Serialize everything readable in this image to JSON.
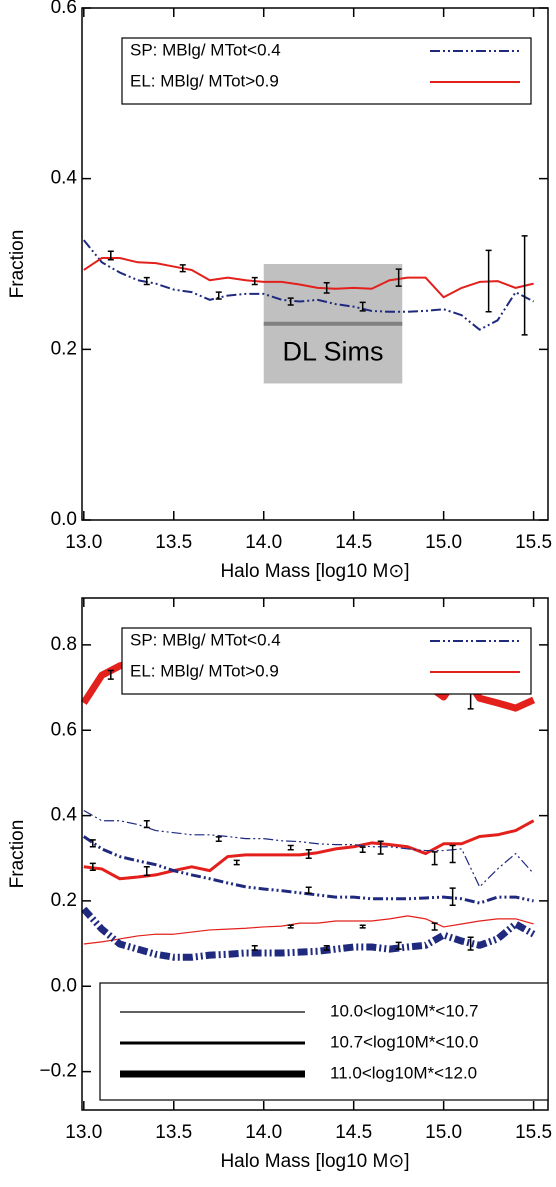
{
  "chart_data": [
    {
      "type": "line",
      "xlabel": "Halo Mass [log10 M⊙]",
      "ylabel": "Fraction",
      "xlim": [
        12.99,
        15.58
      ],
      "ylim": [
        0,
        0.6
      ],
      "xticks": [
        {
          "value": 13,
          "label": "13.0"
        },
        13.5,
        {
          "value": 14,
          "label": "14.0"
        },
        14.5,
        {
          "value": 15,
          "label": "15.0"
        },
        15.5
      ],
      "yticks": [
        {
          "value": 0,
          "label": "0.0"
        },
        0.2,
        0.4,
        0.6
      ],
      "legend": [
        {
          "name": "SP: MBlg/ MTot<0.4",
          "color": "#1f2a7f",
          "dash": "10,3,2,3,2,3"
        },
        {
          "name": "EL: MBlg/ MTot>0.9",
          "color": "#e3201b",
          "dash": "none"
        }
      ],
      "x": [
        13.0,
        13.1,
        13.2,
        13.3,
        13.4,
        13.5,
        13.6,
        13.7,
        13.8,
        13.9,
        14.0,
        14.1,
        14.2,
        14.3,
        14.4,
        14.5,
        14.6,
        14.7,
        14.8,
        14.9,
        15.0,
        15.1,
        15.2,
        15.3,
        15.4,
        15.5
      ],
      "series": [
        {
          "legend": 0,
          "width": 2,
          "values": [
            0.328,
            0.302,
            0.29,
            0.281,
            0.277,
            0.27,
            0.267,
            0.258,
            0.263,
            0.265,
            0.265,
            0.258,
            0.256,
            0.258,
            0.253,
            0.25,
            0.245,
            0.244,
            0.244,
            0.245,
            0.247,
            0.24,
            0.223,
            0.234,
            0.267,
            0.256
          ]
        },
        {
          "legend": 1,
          "width": 2,
          "values": [
            0.293,
            0.307,
            0.307,
            0.302,
            0.301,
            0.297,
            0.293,
            0.281,
            0.284,
            0.281,
            0.279,
            0.279,
            0.276,
            0.272,
            0.271,
            0.272,
            0.271,
            0.281,
            0.284,
            0.284,
            0.261,
            0.272,
            0.279,
            0.28,
            0.272,
            0.277
          ]
        }
      ],
      "error_bars": {
        "x": [
          13.15,
          13.35,
          13.55,
          13.75,
          13.95,
          14.15,
          14.35,
          14.55,
          14.75,
          15.25,
          15.45
        ],
        "values": [
          0.31,
          0.28,
          0.295,
          0.263,
          0.28,
          0.256,
          0.272,
          0.25,
          0.284,
          0.28,
          0.275
        ],
        "errors": [
          0.005,
          0.004,
          0.004,
          0.004,
          0.004,
          0.004,
          0.006,
          0.005,
          0.01,
          0.036,
          0.058
        ]
      },
      "band": {
        "label": "DL Sims",
        "xlim": [
          14.0,
          14.77
        ],
        "ylim": [
          0.16,
          0.3
        ],
        "line": 0.23
      }
    },
    {
      "type": "line",
      "xlabel": "Halo Mass [log10 M⊙]",
      "ylabel": "Fraction",
      "xlim": [
        12.99,
        15.58
      ],
      "ylim": [
        -0.29,
        0.91
      ],
      "xticks": [
        {
          "value": 13,
          "label": "13.0"
        },
        13.5,
        {
          "value": 14,
          "label": "14.0"
        },
        14.5,
        {
          "value": 15,
          "label": "15.0"
        },
        15.5
      ],
      "yticks": [
        {
          "value": -0.2,
          "label": "−0.2"
        },
        {
          "value": 0,
          "label": "0.0"
        },
        0.2,
        0.4,
        0.6,
        0.8
      ],
      "legend": [
        {
          "name": "SP: MBlg/ MTot<0.4",
          "color": "#1f2a7f",
          "dash": "10,3,2,3,2,3"
        },
        {
          "name": "EL: MBlg/ MTot>0.9",
          "color": "#e3201b",
          "dash": "none"
        }
      ],
      "width_legend": {
        "labels": [
          "10.0<log10M*<10.7",
          "10.7<log10M*<10.0",
          "11.0<log10M*<12.0"
        ],
        "widths": [
          1.2,
          3,
          7
        ]
      },
      "x": [
        13.0,
        13.1,
        13.2,
        13.3,
        13.4,
        13.5,
        13.6,
        13.7,
        13.8,
        13.9,
        14.0,
        14.1,
        14.2,
        14.3,
        14.4,
        14.5,
        14.6,
        14.7,
        14.8,
        14.9,
        15.0,
        15.1,
        15.2,
        15.3,
        15.4,
        15.5
      ],
      "series": [
        {
          "legend": 1,
          "width_key": 2,
          "values": [
            0.664,
            0.729,
            0.751,
            0.76,
            0.769,
            0.774,
            0.765,
            0.755,
            0.76,
            0.741,
            0.736,
            0.732,
            0.732,
            0.727,
            0.718,
            0.713,
            0.708,
            0.732,
            0.708,
            0.708,
            0.678,
            0.739,
            0.675,
            0.664,
            0.652,
            0.671
          ]
        },
        {
          "legend": 1,
          "width_key": 1,
          "values": [
            0.28,
            0.275,
            0.252,
            0.256,
            0.261,
            0.271,
            0.28,
            0.271,
            0.304,
            0.308,
            0.308,
            0.308,
            0.308,
            0.313,
            0.322,
            0.327,
            0.336,
            0.332,
            0.327,
            0.311,
            0.334,
            0.334,
            0.351,
            0.355,
            0.365,
            0.388
          ]
        },
        {
          "legend": 1,
          "width_key": 0,
          "values": [
            0.099,
            0.104,
            0.111,
            0.118,
            0.122,
            0.122,
            0.127,
            0.132,
            0.134,
            0.136,
            0.139,
            0.141,
            0.148,
            0.148,
            0.153,
            0.153,
            0.153,
            0.158,
            0.165,
            0.158,
            0.139,
            0.146,
            0.153,
            0.158,
            0.158,
            0.146
          ]
        },
        {
          "legend": 0,
          "width_key": 0,
          "values": [
            0.412,
            0.388,
            0.388,
            0.379,
            0.365,
            0.36,
            0.355,
            0.355,
            0.351,
            0.346,
            0.346,
            0.341,
            0.339,
            0.334,
            0.332,
            0.332,
            0.327,
            0.327,
            0.322,
            0.318,
            0.318,
            0.322,
            0.233,
            0.275,
            0.311,
            0.264
          ]
        },
        {
          "legend": 0,
          "width_key": 1,
          "values": [
            0.351,
            0.322,
            0.304,
            0.294,
            0.285,
            0.271,
            0.261,
            0.252,
            0.242,
            0.233,
            0.228,
            0.224,
            0.219,
            0.214,
            0.209,
            0.209,
            0.205,
            0.205,
            0.205,
            0.207,
            0.209,
            0.205,
            0.195,
            0.209,
            0.209,
            0.2
          ]
        },
        {
          "legend": 0,
          "width_key": 2,
          "values": [
            0.181,
            0.134,
            0.099,
            0.087,
            0.075,
            0.068,
            0.068,
            0.073,
            0.075,
            0.078,
            0.078,
            0.078,
            0.08,
            0.082,
            0.087,
            0.092,
            0.092,
            0.087,
            0.092,
            0.096,
            0.12,
            0.106,
            0.096,
            0.111,
            0.146,
            0.122
          ]
        }
      ],
      "error_bars": {
        "x": [
          13.15,
          14.35,
          14.75,
          15.15,
          13.35,
          13.75,
          14.15,
          14.55,
          14.95,
          15.05,
          13.05,
          13.35,
          14.25,
          15.05,
          13.05,
          13.85,
          14.25,
          14.65,
          14.15,
          14.55,
          14.95,
          13.95,
          14.35,
          14.75,
          15.15
        ],
        "values": [
          0.73,
          0.73,
          0.72,
          0.7,
          0.38,
          0.345,
          0.325,
          0.32,
          0.3,
          0.31,
          0.335,
          0.27,
          0.225,
          0.21,
          0.28,
          0.29,
          0.31,
          0.325,
          0.14,
          0.14,
          0.14,
          0.09,
          0.09,
          0.095,
          0.1
        ],
        "errors": [
          0.01,
          0.02,
          0.03,
          0.05,
          0.008,
          0.005,
          0.005,
          0.006,
          0.015,
          0.02,
          0.008,
          0.01,
          0.007,
          0.02,
          0.008,
          0.005,
          0.01,
          0.015,
          0.003,
          0.003,
          0.008,
          0.005,
          0.005,
          0.008,
          0.015
        ]
      }
    }
  ]
}
